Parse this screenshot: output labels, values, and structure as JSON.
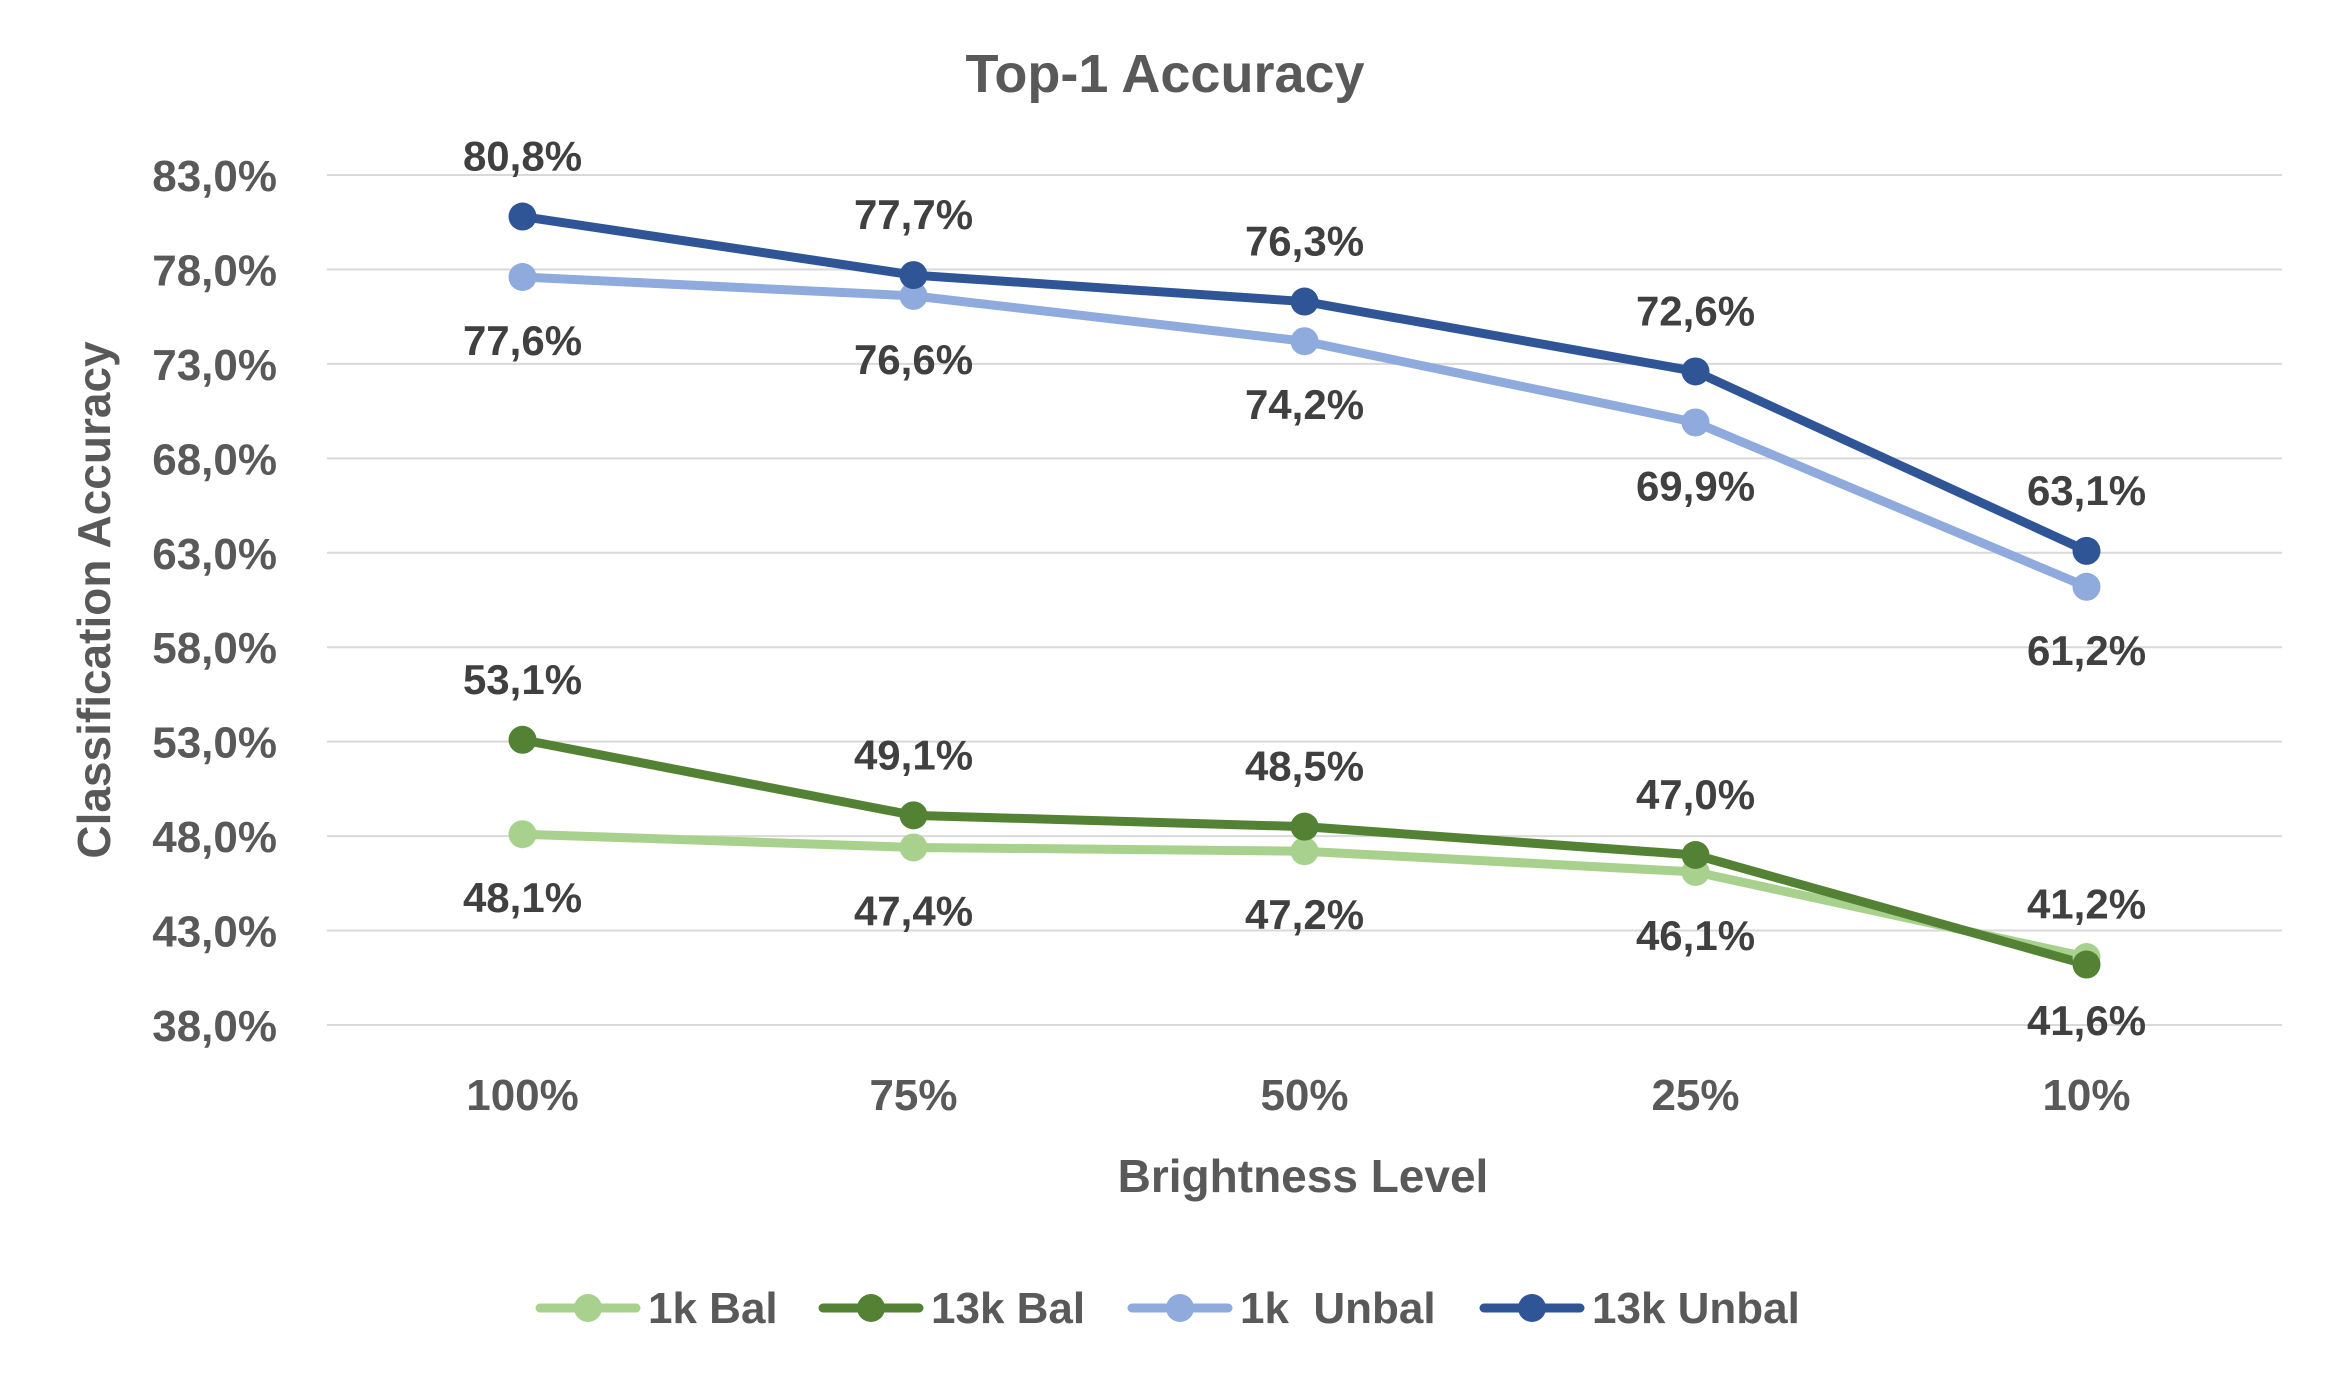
{
  "chart_data": {
    "type": "line",
    "title": "Top-1 Accuracy",
    "xlabel": "Brightness Level",
    "ylabel": "Classification Accuracy",
    "categories": [
      "100%",
      "75%",
      "50%",
      "25%",
      "10%"
    ],
    "ylim": [
      38,
      83
    ],
    "yticks": [
      38,
      43,
      48,
      53,
      58,
      63,
      68,
      73,
      78,
      83
    ],
    "ytick_labels": [
      "38,0%",
      "43,0%",
      "48,0%",
      "53,0%",
      "58,0%",
      "63,0%",
      "68,0%",
      "73,0%",
      "78,0%",
      "83,0%"
    ],
    "grid": true,
    "legend_position": "bottom",
    "series": [
      {
        "name": "1k Bal",
        "color": "#a9d18e",
        "values": [
          48.1,
          47.4,
          47.2,
          46.1,
          41.6
        ],
        "labels": [
          "48,1%",
          "47,4%",
          "47,2%",
          "46,1%",
          "41,6%"
        ],
        "label_side": [
          "below",
          "below",
          "below",
          "below",
          "below"
        ]
      },
      {
        "name": "13k Bal",
        "color": "#548235",
        "values": [
          53.1,
          49.1,
          48.5,
          47.0,
          41.2
        ],
        "labels": [
          "53,1%",
          "49,1%",
          "48,5%",
          "47,0%",
          "41,2%"
        ],
        "label_side": [
          "above",
          "above",
          "above",
          "above",
          "above"
        ]
      },
      {
        "name": "1k  Unbal",
        "color": "#8faadc",
        "values": [
          77.6,
          76.6,
          74.2,
          69.9,
          61.2
        ],
        "labels": [
          "77,6%",
          "76,6%",
          "74,2%",
          "69,9%",
          "61,2%"
        ],
        "label_side": [
          "below",
          "below",
          "below",
          "below",
          "below"
        ]
      },
      {
        "name": "13k Unbal",
        "color": "#2f5597",
        "values": [
          80.8,
          77.7,
          76.3,
          72.6,
          63.1
        ],
        "labels": [
          "80,8%",
          "77,7%",
          "76,3%",
          "72,6%",
          "63,1%"
        ],
        "label_side": [
          "above",
          "above",
          "above",
          "above",
          "above"
        ]
      }
    ]
  }
}
